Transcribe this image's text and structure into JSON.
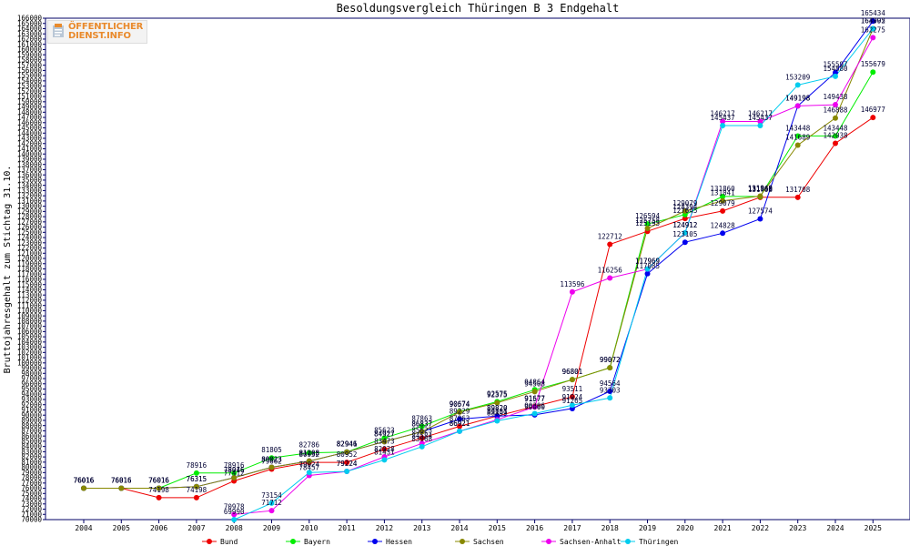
{
  "logo": {
    "line1": "ÖFFENTLICHER",
    "line2": "DIENST.INFO"
  },
  "chart_data": {
    "type": "line",
    "title": "Besoldungsvergleich Thüringen B 3 Endgehalt",
    "ylabel": "Bruttojahresgehalt zum Stichtag 31.10.",
    "xlabel": "",
    "ylim": [
      70000,
      166000
    ],
    "ytick_step": 1000,
    "categories": [
      "2004",
      "2005",
      "2006",
      "2007",
      "2008",
      "2009",
      "2010",
      "2011",
      "2012",
      "2013",
      "2014",
      "2015",
      "2016",
      "2017",
      "2018",
      "2019",
      "2020",
      "2021",
      "2022",
      "2023",
      "2024",
      "2025"
    ],
    "grid": false,
    "legend_position": "bottom",
    "series": [
      {
        "name": "Bund",
        "color": "#ee0000",
        "values": [
          76016,
          76016,
          74198,
          74198,
          77412,
          79662,
          80952,
          80952,
          83473,
          85623,
          87863,
          89820,
          91677,
          93511,
          122712,
          125193,
          127645,
          129079,
          131708,
          131708,
          142038,
          146977
        ]
      },
      {
        "name": "Bayern",
        "color": "#00ee00",
        "values": [
          76016,
          76016,
          76016,
          78916,
          78916,
          81805,
          82786,
          82946,
          85623,
          87863,
          90674,
          92575,
          94864,
          96801,
          99072,
          126594,
          128394,
          131860,
          131860,
          143448,
          143448,
          155679
        ]
      },
      {
        "name": "Hessen",
        "color": "#0000ee",
        "values": [
          76016,
          76016,
          76016,
          76315,
          78046,
          80023,
          81208,
          82946,
          84927,
          86837,
          89229,
          89820,
          90060,
          91265,
          94564,
          117085,
          123105,
          124828,
          127574,
          149198,
          155597,
          165434
        ]
      },
      {
        "name": "Sachsen",
        "color": "#888800",
        "values": [
          76016,
          76016,
          76016,
          76315,
          78016,
          80023,
          81208,
          82941,
          84927,
          86837,
          90574,
          92375,
          94508,
          96801,
          99072,
          125758,
          129079,
          131041,
          131948,
          141689,
          146888,
          164005
        ]
      },
      {
        "name": "Sachsen-Anhalt",
        "color": "#ee00ee",
        "values": [
          null,
          null,
          null,
          null,
          70978,
          71712,
          78457,
          79224,
          82028,
          84584,
          86921,
          89131,
          91577,
          113596,
          116256,
          117969,
          124912,
          146217,
          146217,
          149198,
          149438,
          162275
        ]
      },
      {
        "name": "Thüringen",
        "color": "#00ccee",
        "values": [
          null,
          null,
          null,
          null,
          69990,
          73154,
          79024,
          79224,
          81431,
          83968,
          86921,
          88899,
          90306,
          91924,
          93303,
          117969,
          124912,
          145437,
          145437,
          153209,
          154880,
          163992
        ]
      }
    ]
  }
}
